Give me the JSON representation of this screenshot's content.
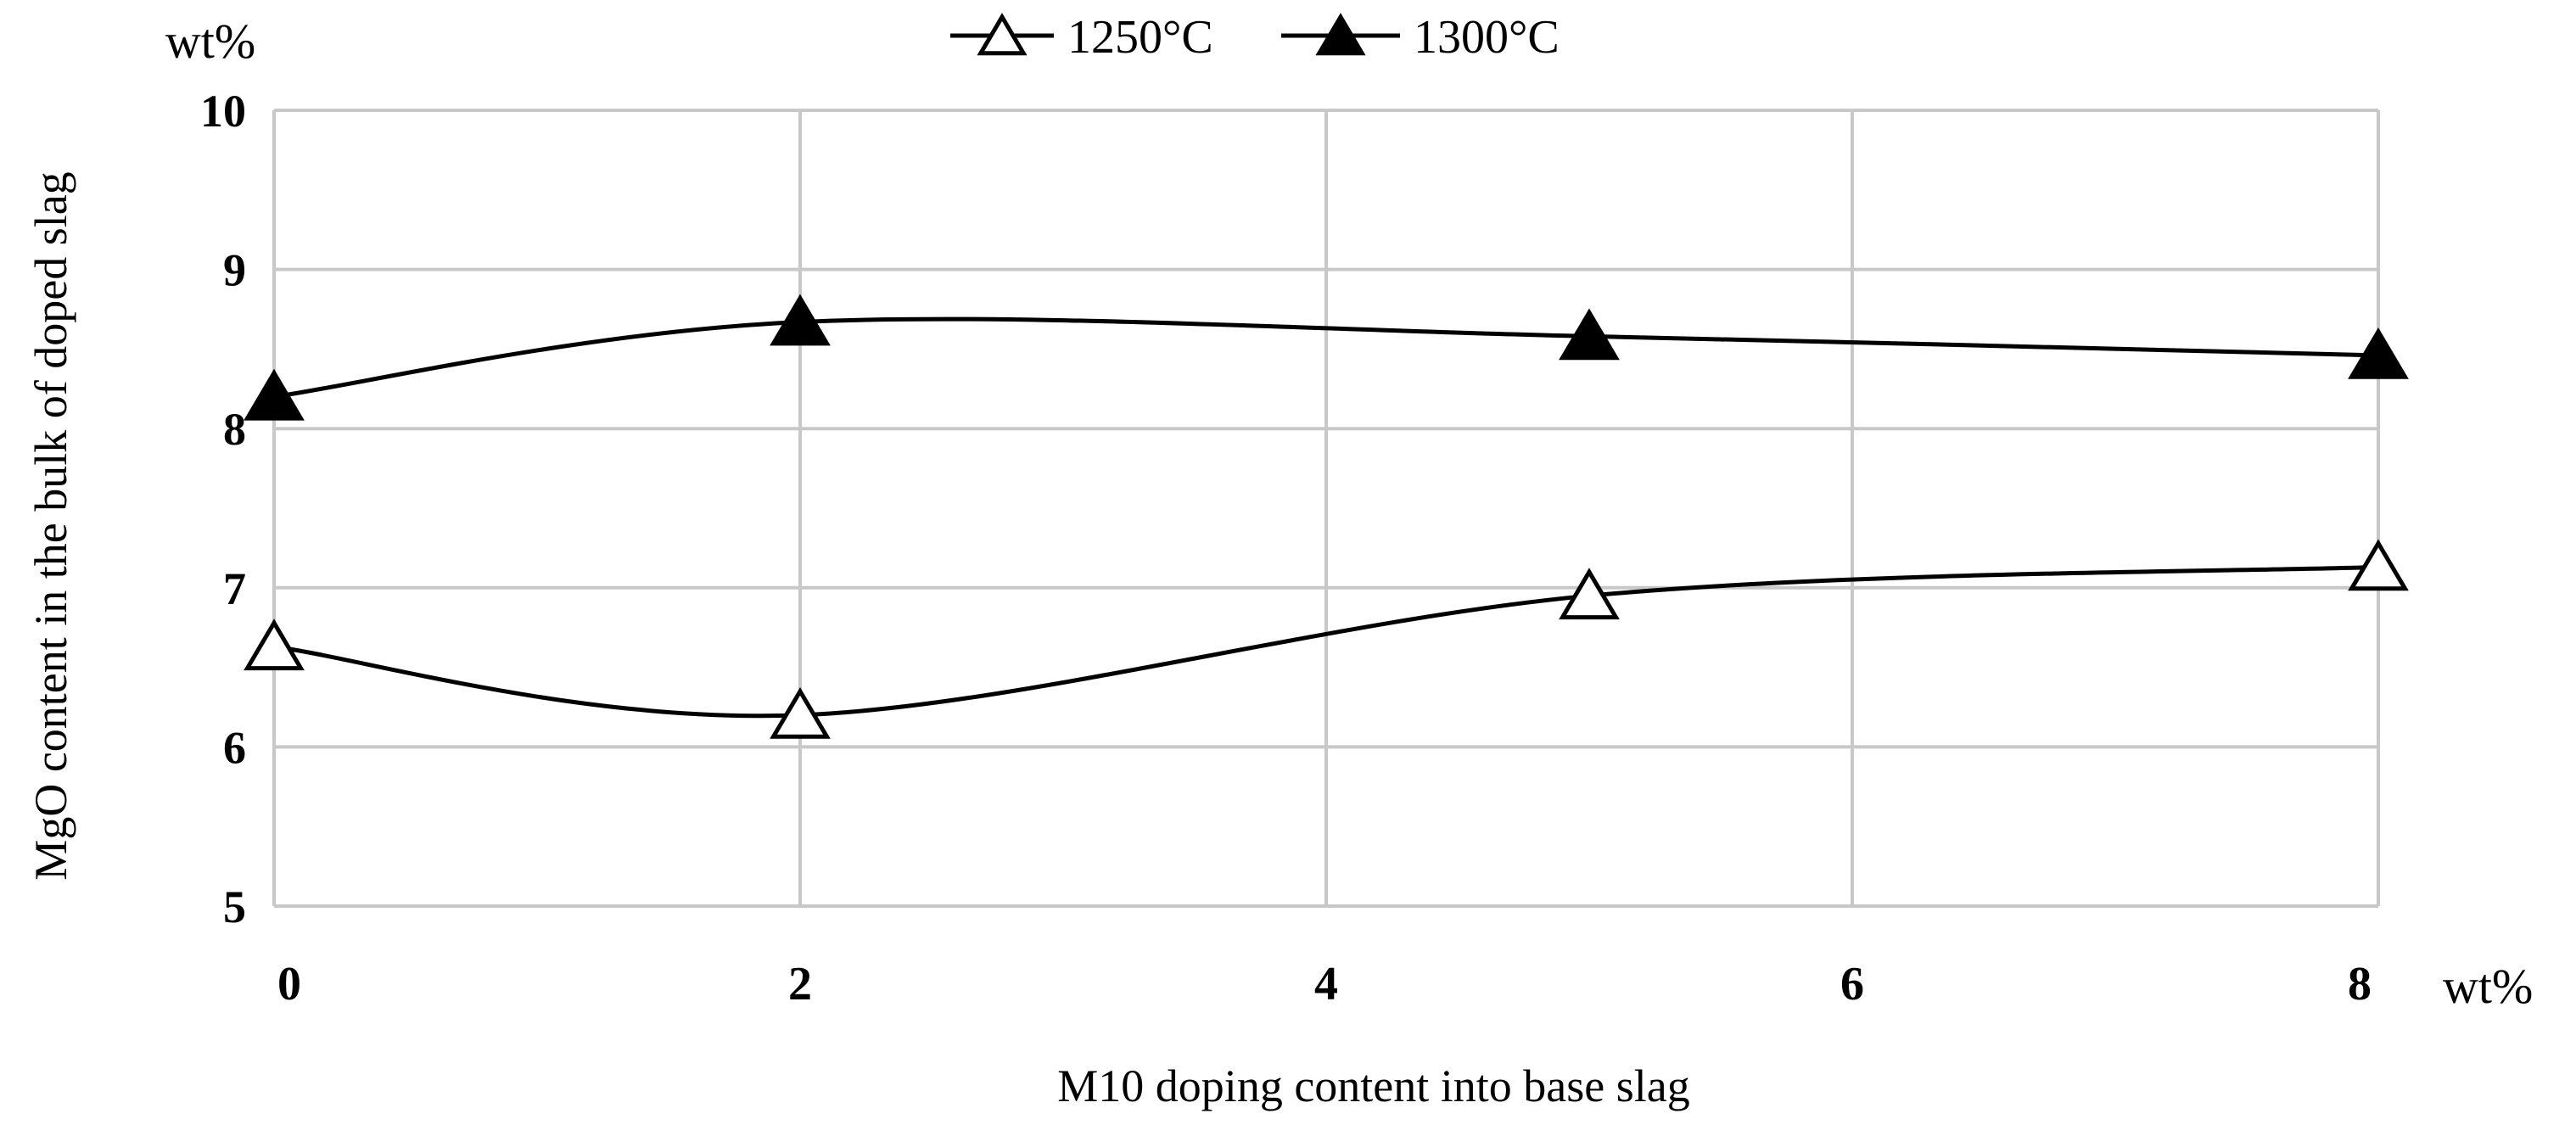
{
  "chart_data": {
    "type": "line",
    "title": "",
    "xlabel": "M10 doping content into base slag",
    "ylabel": "MgO content in the bulk of doped slag",
    "x_unit": "wt%",
    "y_unit": "wt%",
    "xlim": [
      0,
      8
    ],
    "ylim": [
      5,
      10
    ],
    "x_ticks": [
      "0",
      "2",
      "4",
      "6",
      "8"
    ],
    "y_ticks": [
      "5",
      "6",
      "7",
      "8",
      "9",
      "10"
    ],
    "grid": true,
    "legend_position": "top-center",
    "series": [
      {
        "name": "1250°C",
        "marker": "triangle-open",
        "x": [
          0,
          2,
          5,
          8
        ],
        "values": [
          6.63,
          6.2,
          6.95,
          7.13
        ]
      },
      {
        "name": "1300°C",
        "marker": "triangle-filled",
        "x": [
          0,
          2,
          5,
          8
        ],
        "values": [
          8.2,
          8.67,
          8.58,
          8.46
        ]
      }
    ]
  }
}
